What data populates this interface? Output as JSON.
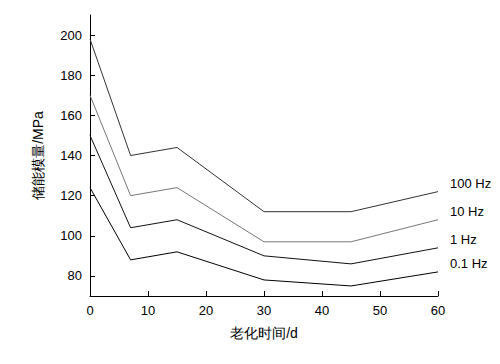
{
  "chart_data": {
    "type": "line",
    "x_label": "老化时间/d",
    "y_label": "储能模量/MPa",
    "x": [
      0,
      7,
      15,
      30,
      45,
      60
    ],
    "series": [
      {
        "name": "100 Hz",
        "color": "#333333",
        "values": [
          198,
          140,
          144,
          112,
          112,
          122
        ]
      },
      {
        "name": "10 Hz",
        "color": "#777777",
        "values": [
          170,
          120,
          124,
          97,
          97,
          108
        ]
      },
      {
        "name": "1 Hz",
        "color": "#111111",
        "values": [
          150,
          104,
          108,
          90,
          86,
          94
        ]
      },
      {
        "name": "0.1 Hz",
        "color": "#000000",
        "values": [
          124,
          88,
          92,
          78,
          75,
          82
        ]
      }
    ],
    "xlim": [
      0,
      60
    ],
    "xticks": [
      0,
      10,
      20,
      30,
      40,
      50,
      60
    ],
    "ylim": [
      70,
      210
    ],
    "yticks": [
      80,
      100,
      120,
      140,
      160,
      180,
      200
    ],
    "grid": false
  }
}
